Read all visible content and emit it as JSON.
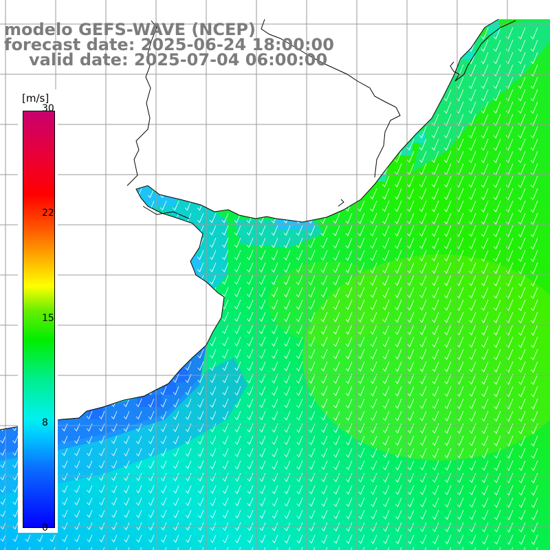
{
  "title": {
    "line1": "modelo GEFS-WAVE (NCEP)",
    "line2": "forecast date: 2025-06-24 18:00:00",
    "line3": "valid date: 2025-07-04 06:00:00"
  },
  "colorbar": {
    "unit": "[m/s]",
    "ticks": [
      "30",
      "22",
      "15",
      "8",
      "0"
    ],
    "range": [
      0,
      30
    ]
  },
  "map": {
    "variable": "wind speed",
    "arrow_direction": "toward south-southwest",
    "colors": {
      "land": "#ffffff",
      "coast": "#000000",
      "grid": "#999999",
      "arrow": "#ffffff"
    }
  }
}
